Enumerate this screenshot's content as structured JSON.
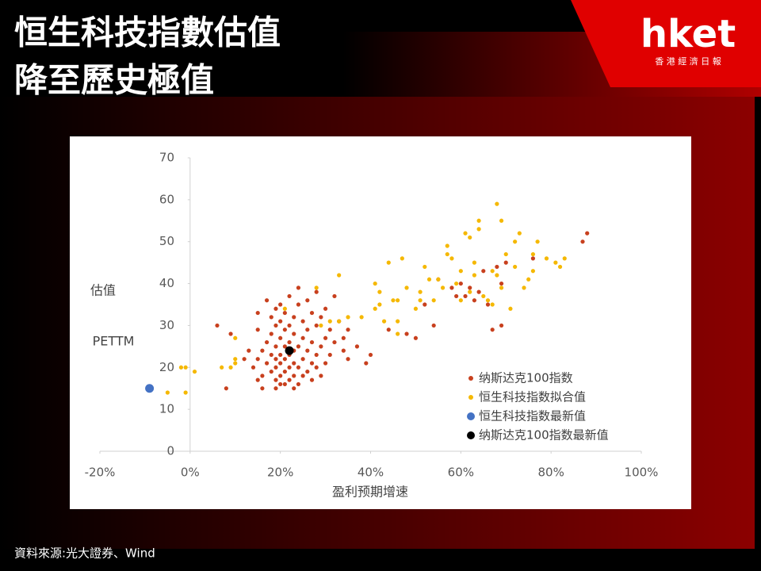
{
  "slide": {
    "title_lines": [
      "恒生科技指數估值",
      "降至歷史極值"
    ],
    "logo": "hket",
    "logo_sub": "香 港 經 濟 日 報",
    "source": "資料來源:光大證券、Wind"
  },
  "chart_data": {
    "type": "scatter",
    "xlabel": "盈利预期增速",
    "ylabel": [
      "估值",
      "PETTM"
    ],
    "xlim": [
      -20,
      100
    ],
    "ylim": [
      0,
      70
    ],
    "xticks": [
      {
        "value": -20,
        "label": "-20%"
      },
      {
        "value": 0,
        "label": "0%"
      },
      {
        "value": 20,
        "label": "20%"
      },
      {
        "value": 40,
        "label": "40%"
      },
      {
        "value": 60,
        "label": "60%"
      },
      {
        "value": 80,
        "label": "80%"
      },
      {
        "value": 100,
        "label": "100%"
      }
    ],
    "yticks": [
      0,
      10,
      20,
      30,
      40,
      50,
      60,
      70
    ],
    "legend": "right",
    "series": [
      {
        "name": "纳斯达克100指数",
        "color": "#c8401e",
        "x": [
          6,
          8,
          9,
          12,
          13,
          14,
          15,
          15,
          15,
          15,
          16,
          16,
          16,
          17,
          17,
          17,
          18,
          18,
          18,
          18,
          19,
          19,
          19,
          19,
          19,
          19,
          19,
          20,
          20,
          20,
          20,
          20,
          20,
          20,
          21,
          21,
          21,
          21,
          21,
          21,
          22,
          22,
          22,
          22,
          22,
          22,
          23,
          23,
          23,
          23,
          23,
          23,
          24,
          24,
          24,
          24,
          24,
          25,
          25,
          25,
          25,
          26,
          26,
          26,
          26,
          27,
          27,
          27,
          27,
          28,
          28,
          28,
          28,
          29,
          29,
          29,
          30,
          30,
          30,
          31,
          31,
          32,
          32,
          33,
          34,
          34,
          35,
          35,
          37,
          39,
          40,
          44,
          48,
          50,
          52,
          54,
          55,
          58,
          59,
          60,
          61,
          62,
          63,
          64,
          65,
          66,
          67,
          68,
          69,
          69,
          70,
          76,
          87,
          88
        ],
        "values": [
          30,
          15,
          28,
          22,
          24,
          20,
          17,
          22,
          33,
          29,
          15,
          18,
          24,
          21,
          26,
          36,
          19,
          23,
          28,
          32,
          15,
          17,
          20,
          22,
          25,
          30,
          34,
          16,
          18,
          21,
          23,
          27,
          31,
          35,
          16,
          19,
          22,
          25,
          29,
          33,
          17,
          20,
          23,
          26,
          30,
          37,
          15,
          18,
          21,
          24,
          28,
          32,
          16,
          20,
          25,
          35,
          39,
          18,
          22,
          27,
          31,
          19,
          24,
          29,
          36,
          17,
          21,
          26,
          33,
          20,
          23,
          30,
          38,
          18,
          25,
          32,
          21,
          27,
          34,
          23,
          29,
          26,
          37,
          31,
          24,
          27,
          22,
          29,
          25,
          21,
          23,
          29,
          28,
          27,
          35,
          30,
          41,
          39,
          37,
          40,
          37,
          39,
          36,
          38,
          43,
          35,
          29,
          44,
          30,
          40,
          45,
          46,
          50,
          52
        ]
      },
      {
        "name": "恒生科技指数拟合值",
        "color": "#f5b800",
        "x": [
          -2,
          -1,
          -1,
          -5,
          1,
          7,
          9,
          10,
          10,
          10,
          21,
          28,
          29,
          31,
          33,
          33,
          35,
          38,
          41,
          41,
          42,
          42,
          43,
          44,
          45,
          46,
          46,
          46,
          47,
          48,
          50,
          51,
          51,
          52,
          53,
          54,
          55,
          56,
          57,
          57,
          58,
          59,
          60,
          60,
          61,
          62,
          62,
          63,
          63,
          64,
          64,
          65,
          66,
          67,
          67,
          68,
          68,
          69,
          69,
          70,
          71,
          72,
          72,
          73,
          74,
          75,
          76,
          76,
          77,
          79,
          81,
          82,
          83
        ],
        "values": [
          20,
          20,
          14,
          14,
          19,
          20,
          20,
          22,
          27,
          21,
          34,
          39,
          30,
          31,
          42,
          31,
          32,
          32,
          34,
          40,
          35,
          38,
          31,
          45,
          36,
          28,
          31,
          36,
          46,
          39,
          34,
          38,
          36,
          44,
          41,
          36,
          41,
          39,
          47,
          49,
          46,
          40,
          36,
          43,
          52,
          51,
          38,
          42,
          45,
          55,
          53,
          37,
          36,
          43,
          35,
          59,
          42,
          55,
          39,
          47,
          34,
          50,
          44,
          52,
          39,
          41,
          47,
          43,
          50,
          46,
          45,
          44,
          46
        ]
      },
      {
        "name": "恒生科技指数最新值",
        "color": "#4472c4",
        "x": [
          -9
        ],
        "values": [
          15
        ]
      },
      {
        "name": "纳斯达克100指数最新值",
        "color": "#000000",
        "x": [
          22
        ],
        "values": [
          24
        ]
      }
    ]
  }
}
